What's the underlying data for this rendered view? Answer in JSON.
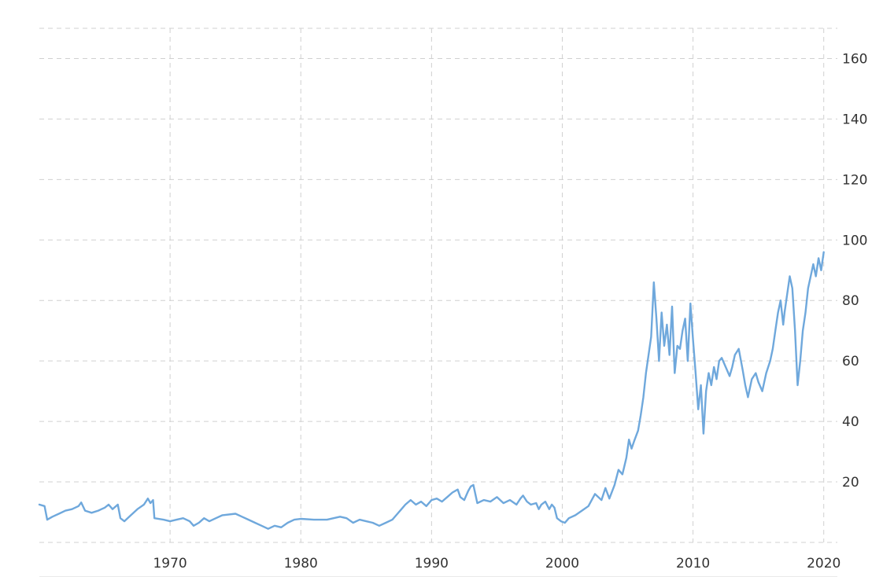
{
  "chart_data": {
    "type": "line",
    "title": "",
    "xlabel": "",
    "ylabel": "",
    "xlim": [
      1960,
      2020.8
    ],
    "ylim": [
      0,
      170
    ],
    "x_ticks": [
      "1970",
      "1980",
      "1990",
      "2000",
      "2010",
      "2020"
    ],
    "y_ticks": [
      "20",
      "40",
      "60",
      "80",
      "100",
      "120",
      "140",
      "160"
    ],
    "grid": true,
    "legend": "none",
    "series": [
      {
        "color": "#6fa8dc",
        "points": [
          [
            1960.0,
            12.5
          ],
          [
            1960.4,
            12.0
          ],
          [
            1960.6,
            7.5
          ],
          [
            1961.0,
            8.5
          ],
          [
            1961.5,
            9.5
          ],
          [
            1962.0,
            10.5
          ],
          [
            1962.5,
            11.0
          ],
          [
            1963.0,
            12.0
          ],
          [
            1963.2,
            13.2
          ],
          [
            1963.5,
            10.5
          ],
          [
            1964.0,
            9.8
          ],
          [
            1964.5,
            10.5
          ],
          [
            1965.0,
            11.5
          ],
          [
            1965.3,
            12.5
          ],
          [
            1965.6,
            11.0
          ],
          [
            1966.0,
            12.5
          ],
          [
            1966.2,
            8.0
          ],
          [
            1966.5,
            7.0
          ],
          [
            1967.0,
            9.0
          ],
          [
            1967.5,
            11.0
          ],
          [
            1968.0,
            12.5
          ],
          [
            1968.3,
            14.5
          ],
          [
            1968.5,
            13.0
          ],
          [
            1968.7,
            14.0
          ],
          [
            1968.8,
            8.0
          ],
          [
            1969.5,
            7.5
          ],
          [
            1970.0,
            7.0
          ],
          [
            1970.5,
            7.5
          ],
          [
            1971.0,
            8.0
          ],
          [
            1971.5,
            7.0
          ],
          [
            1971.8,
            5.5
          ],
          [
            1972.2,
            6.5
          ],
          [
            1972.6,
            8.0
          ],
          [
            1973.0,
            7.0
          ],
          [
            1973.5,
            8.0
          ],
          [
            1974.0,
            9.0
          ],
          [
            1975.0,
            9.5
          ],
          [
            1975.5,
            8.5
          ],
          [
            1976.0,
            7.5
          ],
          [
            1976.5,
            6.5
          ],
          [
            1977.0,
            5.5
          ],
          [
            1977.5,
            4.5
          ],
          [
            1978.0,
            5.5
          ],
          [
            1978.5,
            5.0
          ],
          [
            1979.0,
            6.5
          ],
          [
            1979.5,
            7.5
          ],
          [
            1980.0,
            7.8
          ],
          [
            1981.0,
            7.5
          ],
          [
            1982.0,
            7.5
          ],
          [
            1982.5,
            8.0
          ],
          [
            1983.0,
            8.5
          ],
          [
            1983.5,
            8.0
          ],
          [
            1984.0,
            6.5
          ],
          [
            1984.5,
            7.5
          ],
          [
            1985.0,
            7.0
          ],
          [
            1985.5,
            6.5
          ],
          [
            1986.0,
            5.5
          ],
          [
            1986.5,
            6.5
          ],
          [
            1987.0,
            7.5
          ],
          [
            1987.5,
            10.0
          ],
          [
            1988.0,
            12.5
          ],
          [
            1988.4,
            14.0
          ],
          [
            1988.8,
            12.5
          ],
          [
            1989.2,
            13.5
          ],
          [
            1989.6,
            12.0
          ],
          [
            1990.0,
            14.0
          ],
          [
            1990.4,
            14.5
          ],
          [
            1990.8,
            13.5
          ],
          [
            1991.2,
            15.0
          ],
          [
            1991.6,
            16.5
          ],
          [
            1992.0,
            17.5
          ],
          [
            1992.2,
            15.0
          ],
          [
            1992.5,
            14.0
          ],
          [
            1992.8,
            17.0
          ],
          [
            1993.0,
            18.5
          ],
          [
            1993.2,
            19.0
          ],
          [
            1993.5,
            13.0
          ],
          [
            1994.0,
            14.0
          ],
          [
            1994.5,
            13.5
          ],
          [
            1995.0,
            15.0
          ],
          [
            1995.5,
            13.0
          ],
          [
            1996.0,
            14.0
          ],
          [
            1996.5,
            12.5
          ],
          [
            1996.8,
            14.5
          ],
          [
            1997.0,
            15.5
          ],
          [
            1997.3,
            13.5
          ],
          [
            1997.6,
            12.5
          ],
          [
            1998.0,
            13.0
          ],
          [
            1998.2,
            11.0
          ],
          [
            1998.4,
            12.5
          ],
          [
            1998.7,
            13.5
          ],
          [
            1999.0,
            11.0
          ],
          [
            1999.2,
            12.5
          ],
          [
            1999.4,
            11.5
          ],
          [
            1999.6,
            8.0
          ],
          [
            1999.9,
            7.0
          ],
          [
            2000.2,
            6.5
          ],
          [
            2000.5,
            8.0
          ],
          [
            2001.0,
            9.0
          ],
          [
            2001.5,
            10.5
          ],
          [
            2002.0,
            12.0
          ],
          [
            2002.5,
            16.0
          ],
          [
            2003.0,
            14.0
          ],
          [
            2003.3,
            18.0
          ],
          [
            2003.6,
            14.5
          ],
          [
            2004.0,
            19.0
          ],
          [
            2004.3,
            24.0
          ],
          [
            2004.6,
            22.5
          ],
          [
            2004.9,
            28.0
          ],
          [
            2005.1,
            34.0
          ],
          [
            2005.3,
            31.0
          ],
          [
            2005.5,
            33.5
          ],
          [
            2005.8,
            37.0
          ],
          [
            2006.0,
            42.0
          ],
          [
            2006.2,
            48.0
          ],
          [
            2006.4,
            56.0
          ],
          [
            2006.6,
            62.0
          ],
          [
            2006.8,
            68.0
          ],
          [
            2007.0,
            86.0
          ],
          [
            2007.2,
            74.0
          ],
          [
            2007.4,
            60.0
          ],
          [
            2007.6,
            76.0
          ],
          [
            2007.8,
            65.0
          ],
          [
            2008.0,
            72.0
          ],
          [
            2008.2,
            62.0
          ],
          [
            2008.4,
            78.0
          ],
          [
            2008.6,
            56.0
          ],
          [
            2008.8,
            65.0
          ],
          [
            2009.0,
            64.0
          ],
          [
            2009.2,
            70.0
          ],
          [
            2009.4,
            74.0
          ],
          [
            2009.6,
            60.0
          ],
          [
            2009.8,
            79.0
          ],
          [
            2010.0,
            67.0
          ],
          [
            2010.2,
            56.0
          ],
          [
            2010.4,
            44.0
          ],
          [
            2010.6,
            52.0
          ],
          [
            2010.8,
            36.0
          ],
          [
            2011.0,
            50.0
          ],
          [
            2011.2,
            56.0
          ],
          [
            2011.4,
            52.0
          ],
          [
            2011.6,
            58.0
          ],
          [
            2011.8,
            54.0
          ],
          [
            2012.0,
            60.0
          ],
          [
            2012.2,
            61.0
          ],
          [
            2012.5,
            58.0
          ],
          [
            2012.8,
            55.0
          ],
          [
            2013.0,
            58.0
          ],
          [
            2013.2,
            62.0
          ],
          [
            2013.5,
            64.0
          ],
          [
            2013.8,
            57.0
          ],
          [
            2014.0,
            52.0
          ],
          [
            2014.2,
            48.0
          ],
          [
            2014.5,
            54.0
          ],
          [
            2014.8,
            56.0
          ],
          [
            2015.0,
            53.0
          ],
          [
            2015.3,
            50.0
          ],
          [
            2015.6,
            56.0
          ],
          [
            2015.9,
            60.0
          ],
          [
            2016.1,
            64.0
          ],
          [
            2016.3,
            70.0
          ],
          [
            2016.5,
            76.0
          ],
          [
            2016.7,
            80.0
          ],
          [
            2016.9,
            72.0
          ],
          [
            2017.0,
            76.0
          ],
          [
            2017.2,
            82.0
          ],
          [
            2017.4,
            88.0
          ],
          [
            2017.6,
            84.0
          ],
          [
            2017.8,
            70.0
          ],
          [
            2018.0,
            52.0
          ],
          [
            2018.2,
            60.0
          ],
          [
            2018.4,
            70.0
          ],
          [
            2018.6,
            76.0
          ],
          [
            2018.8,
            84.0
          ],
          [
            2019.0,
            88.0
          ],
          [
            2019.2,
            92.0
          ],
          [
            2019.4,
            88.0
          ],
          [
            2019.6,
            94.0
          ],
          [
            2019.8,
            90.0
          ],
          [
            2020.0,
            96.0
          ]
        ]
      }
    ]
  }
}
